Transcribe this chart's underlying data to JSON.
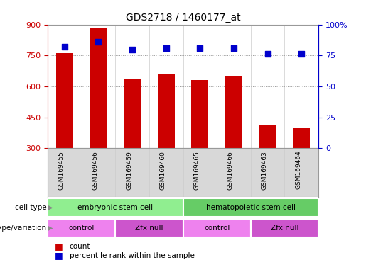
{
  "title": "GDS2718 / 1460177_at",
  "samples": [
    "GSM169455",
    "GSM169456",
    "GSM169459",
    "GSM169460",
    "GSM169465",
    "GSM169466",
    "GSM169463",
    "GSM169464"
  ],
  "counts": [
    760,
    880,
    635,
    660,
    630,
    650,
    415,
    400
  ],
  "percentile_ranks": [
    82,
    86,
    80,
    81,
    81,
    81,
    76,
    76
  ],
  "ymin": 300,
  "ymax": 900,
  "yticks": [
    300,
    450,
    600,
    750,
    900
  ],
  "y2ticks": [
    0,
    25,
    50,
    75,
    100
  ],
  "y2ticklabels": [
    "0",
    "25",
    "50",
    "75",
    "100%"
  ],
  "bar_color": "#cc0000",
  "dot_color": "#0000cc",
  "cell_type_groups": [
    {
      "label": "embryonic stem cell",
      "start": 0,
      "end": 4,
      "color": "#90ee90"
    },
    {
      "label": "hematopoietic stem cell",
      "start": 4,
      "end": 8,
      "color": "#66cc66"
    }
  ],
  "genotype_groups": [
    {
      "label": "control",
      "start": 0,
      "end": 2,
      "color": "#ee82ee"
    },
    {
      "label": "Zfx null",
      "start": 2,
      "end": 4,
      "color": "#cc55cc"
    },
    {
      "label": "control",
      "start": 4,
      "end": 6,
      "color": "#ee82ee"
    },
    {
      "label": "Zfx null",
      "start": 6,
      "end": 8,
      "color": "#cc55cc"
    }
  ],
  "left_axis_color": "#cc0000",
  "right_axis_color": "#0000cc",
  "grid_color": "#999999",
  "vline_color": "#cccccc",
  "xlabel_bg": "#d8d8d8",
  "background_color": "#ffffff",
  "legend_count_color": "#cc0000",
  "legend_dot_color": "#0000cc"
}
